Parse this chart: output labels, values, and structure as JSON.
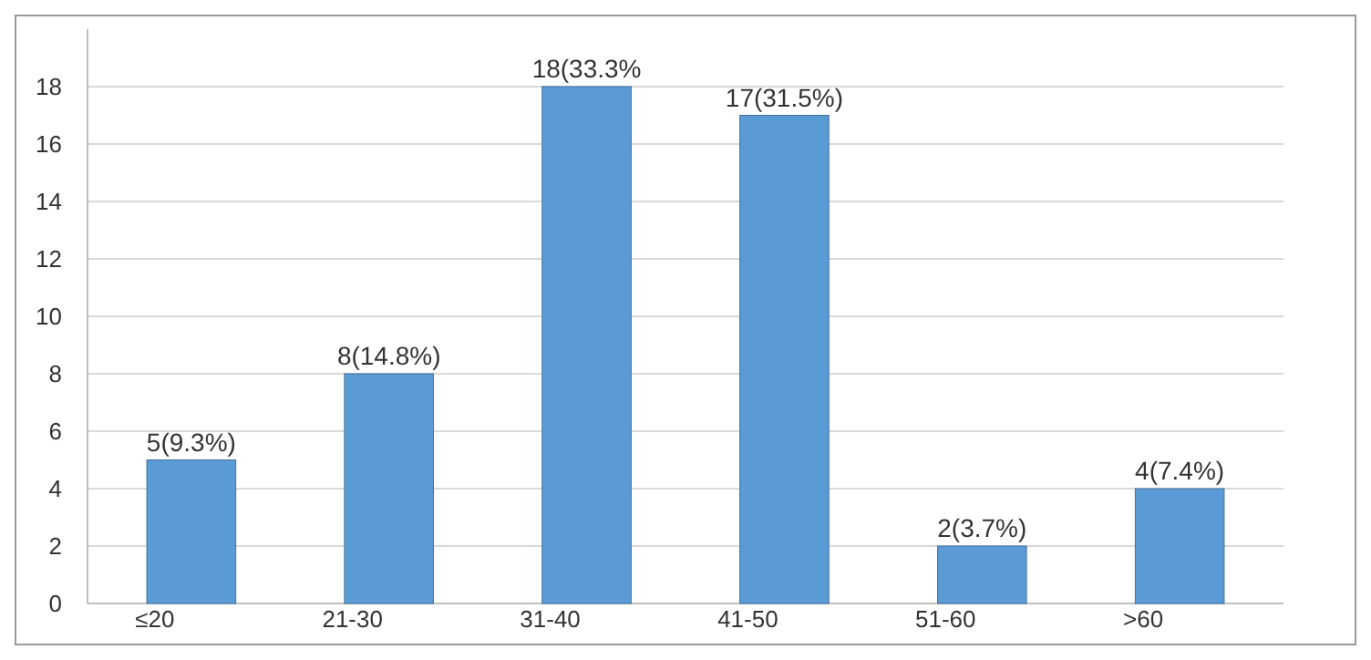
{
  "chart_data": {
    "type": "bar",
    "categories": [
      "≤20",
      "21-30",
      "31-40",
      "41-50",
      "51-60",
      ">60"
    ],
    "values": [
      5,
      8,
      18,
      17,
      2,
      4
    ],
    "value_labels": [
      "5(9.3%)",
      "8(14.8%)",
      "18(33.3%",
      "17(31.5%)",
      "2(3.7%)",
      "4(7.4%)"
    ],
    "color": "#5b9bd5",
    "ylim": [
      0,
      20
    ],
    "yticks": [
      0,
      2,
      4,
      6,
      8,
      10,
      12,
      14,
      16,
      18
    ],
    "grid": "y"
  }
}
